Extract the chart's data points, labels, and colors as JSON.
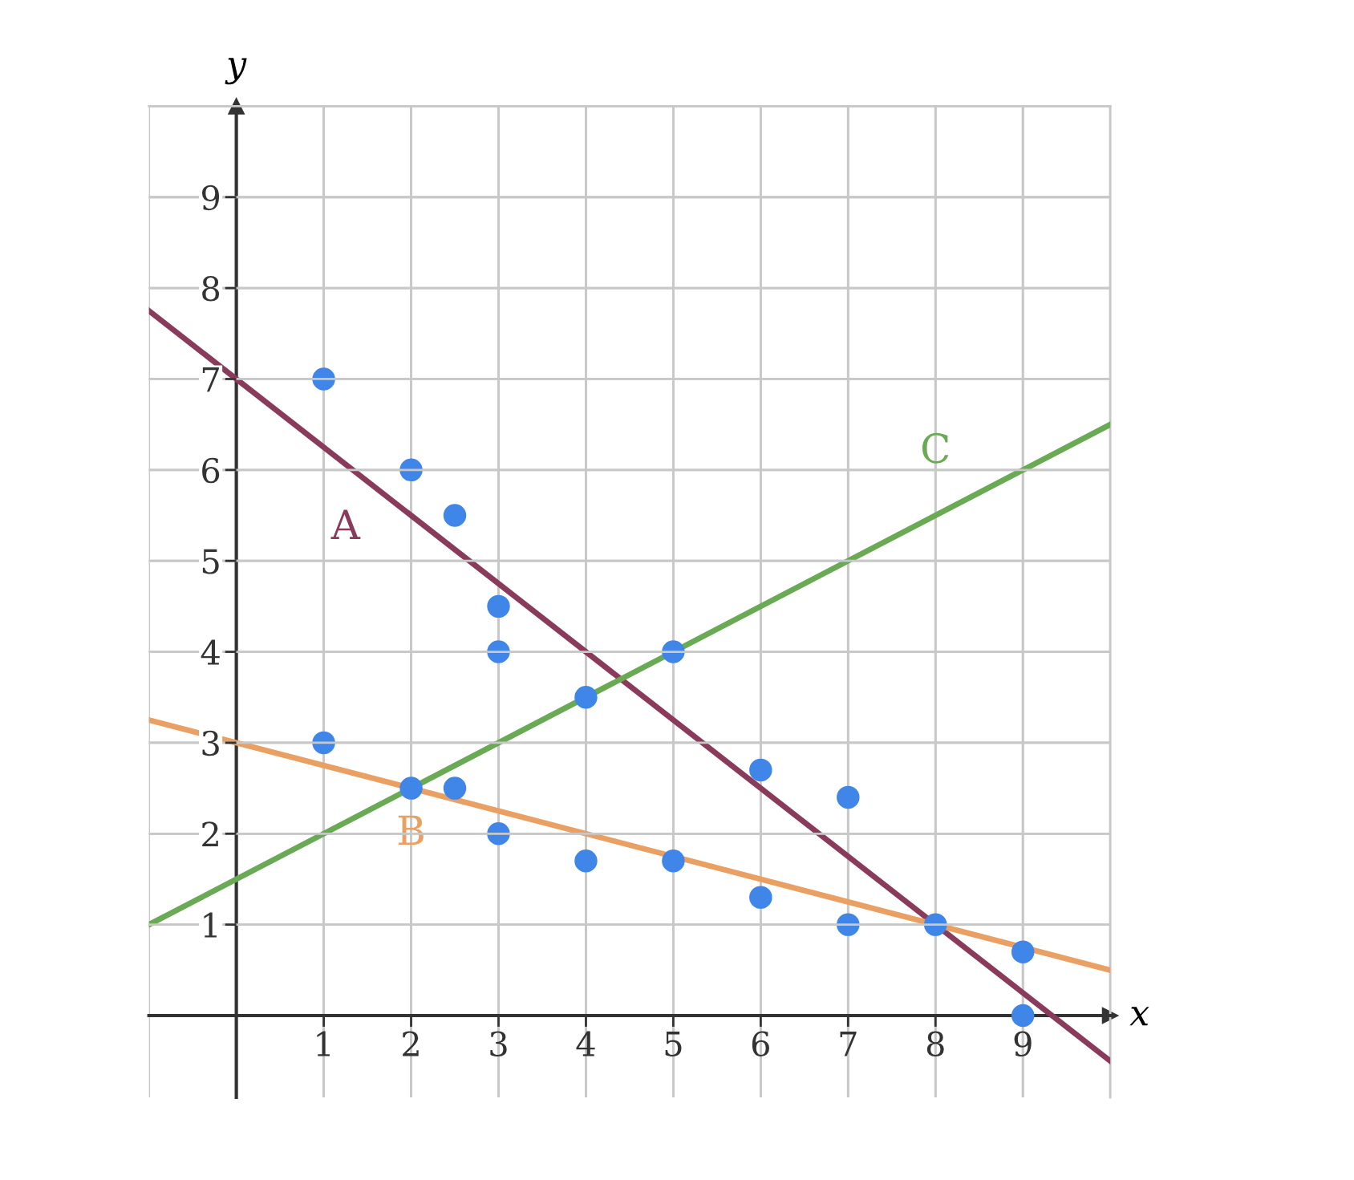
{
  "chart_data": {
    "type": "scatter",
    "xlabel": "x",
    "ylabel": "y",
    "xlim": [
      -1,
      10
    ],
    "ylim": [
      -0.9,
      10
    ],
    "xticks": [
      1,
      2,
      3,
      4,
      5,
      6,
      7,
      8,
      9
    ],
    "yticks": [
      1,
      2,
      3,
      4,
      5,
      6,
      7,
      8,
      9
    ],
    "grid": true,
    "marker": "circle",
    "series": [
      {
        "color": "#3f86e8",
        "x": [
          1,
          2,
          2.5,
          3,
          3,
          4,
          5,
          1,
          2,
          2.5,
          3,
          4,
          5,
          6,
          7,
          6,
          7,
          8,
          9,
          9
        ],
        "values": [
          7,
          6,
          5.5,
          4.5,
          4,
          3.5,
          4,
          3,
          2.5,
          2.5,
          2,
          1.7,
          1.7,
          2.7,
          2.4,
          1.3,
          1,
          1,
          0.7,
          0
        ]
      },
      {
        "type": "line",
        "name": "A",
        "marker": "none",
        "color": "#8a3b5c",
        "x": [
          -1,
          10
        ],
        "values": [
          7.75,
          -0.5
        ]
      },
      {
        "type": "line",
        "name": "B",
        "marker": "none",
        "color": "#e9a062",
        "x": [
          -1,
          10
        ],
        "values": [
          3.25,
          0.5
        ]
      },
      {
        "type": "line",
        "name": "C",
        "marker": "none",
        "color": "#6aaa55",
        "x": [
          -1,
          10
        ],
        "values": [
          1,
          6.5
        ]
      }
    ]
  }
}
